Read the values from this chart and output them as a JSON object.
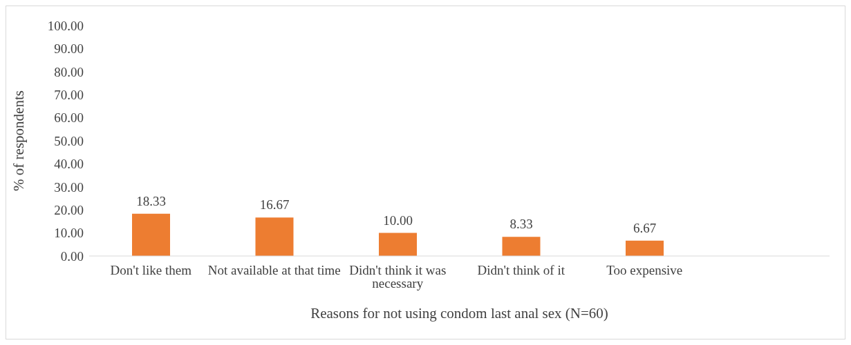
{
  "chart_data": {
    "type": "bar",
    "xlabel": "Reasons for not using condom last anal sex (N=60)",
    "ylabel": "% of respondents",
    "categories": [
      "Don't like them",
      "Not available at that time",
      "Didn't think it was necessary",
      "Didn't think of it",
      "Too expensive",
      null
    ],
    "values": [
      18.33,
      16.67,
      10,
      8.33,
      6.67,
      null
    ],
    "value_labels": [
      "18.33",
      "16.67",
      "10.00",
      "8.33",
      "6.67",
      null
    ],
    "color": "#ed7d31",
    "ylim": [
      0,
      100
    ],
    "yticks": [
      {
        "value": 0,
        "label": "0.00"
      },
      {
        "value": 10,
        "label": "10.00"
      },
      {
        "value": 20,
        "label": "20.00"
      },
      {
        "value": 30,
        "label": "30.00"
      },
      {
        "value": 40,
        "label": "40.00"
      },
      {
        "value": 50,
        "label": "50.00"
      },
      {
        "value": 60,
        "label": "60.00"
      },
      {
        "value": 70,
        "label": "70.00"
      },
      {
        "value": 80,
        "label": "80.00"
      },
      {
        "value": 90,
        "label": "90.00"
      },
      {
        "value": 100,
        "label": "100.00"
      }
    ],
    "grid": false,
    "legend": false
  }
}
